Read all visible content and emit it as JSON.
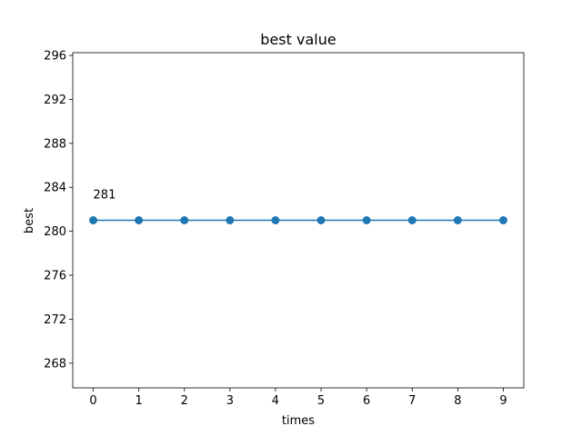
{
  "chart_data": {
    "type": "line",
    "title": "best value",
    "xlabel": "times",
    "ylabel": "best",
    "x": [
      0,
      1,
      2,
      3,
      4,
      5,
      6,
      7,
      8,
      9
    ],
    "series": [
      {
        "values": [
          281,
          281,
          281,
          281,
          281,
          281,
          281,
          281,
          281,
          281
        ],
        "color": "#1f77b4",
        "marker": "circle"
      }
    ],
    "xlim": [
      -0.45,
      9.45
    ],
    "ylim": [
      265.75,
      296.25
    ],
    "xticks": [
      0,
      1,
      2,
      3,
      4,
      5,
      6,
      7,
      8,
      9
    ],
    "yticks": [
      268,
      272,
      276,
      280,
      284,
      288,
      292,
      296
    ],
    "annotations": [
      {
        "text": "281",
        "x": 0,
        "y": 281
      }
    ],
    "grid": false,
    "legend": false
  }
}
